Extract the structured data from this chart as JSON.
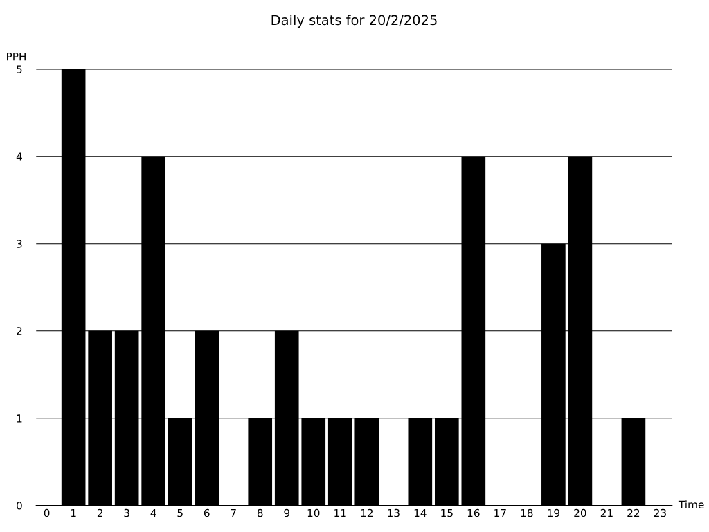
{
  "chart_data": {
    "type": "bar",
    "title": "Daily stats for 20/2/2025",
    "xlabel": "Time",
    "ylabel": "PPH",
    "categories": [
      "0",
      "1",
      "2",
      "3",
      "4",
      "5",
      "6",
      "7",
      "8",
      "9",
      "10",
      "11",
      "12",
      "13",
      "14",
      "15",
      "16",
      "17",
      "18",
      "19",
      "20",
      "21",
      "22",
      "23"
    ],
    "values": [
      0,
      5,
      2,
      2,
      4,
      1,
      2,
      0,
      1,
      2,
      1,
      1,
      1,
      0,
      1,
      1,
      4,
      0,
      0,
      3,
      4,
      0,
      1,
      0
    ],
    "color": "#000000",
    "ylim": [
      0,
      5
    ],
    "yticks": [
      0,
      1,
      2,
      3,
      4,
      5
    ],
    "grid": "y"
  }
}
